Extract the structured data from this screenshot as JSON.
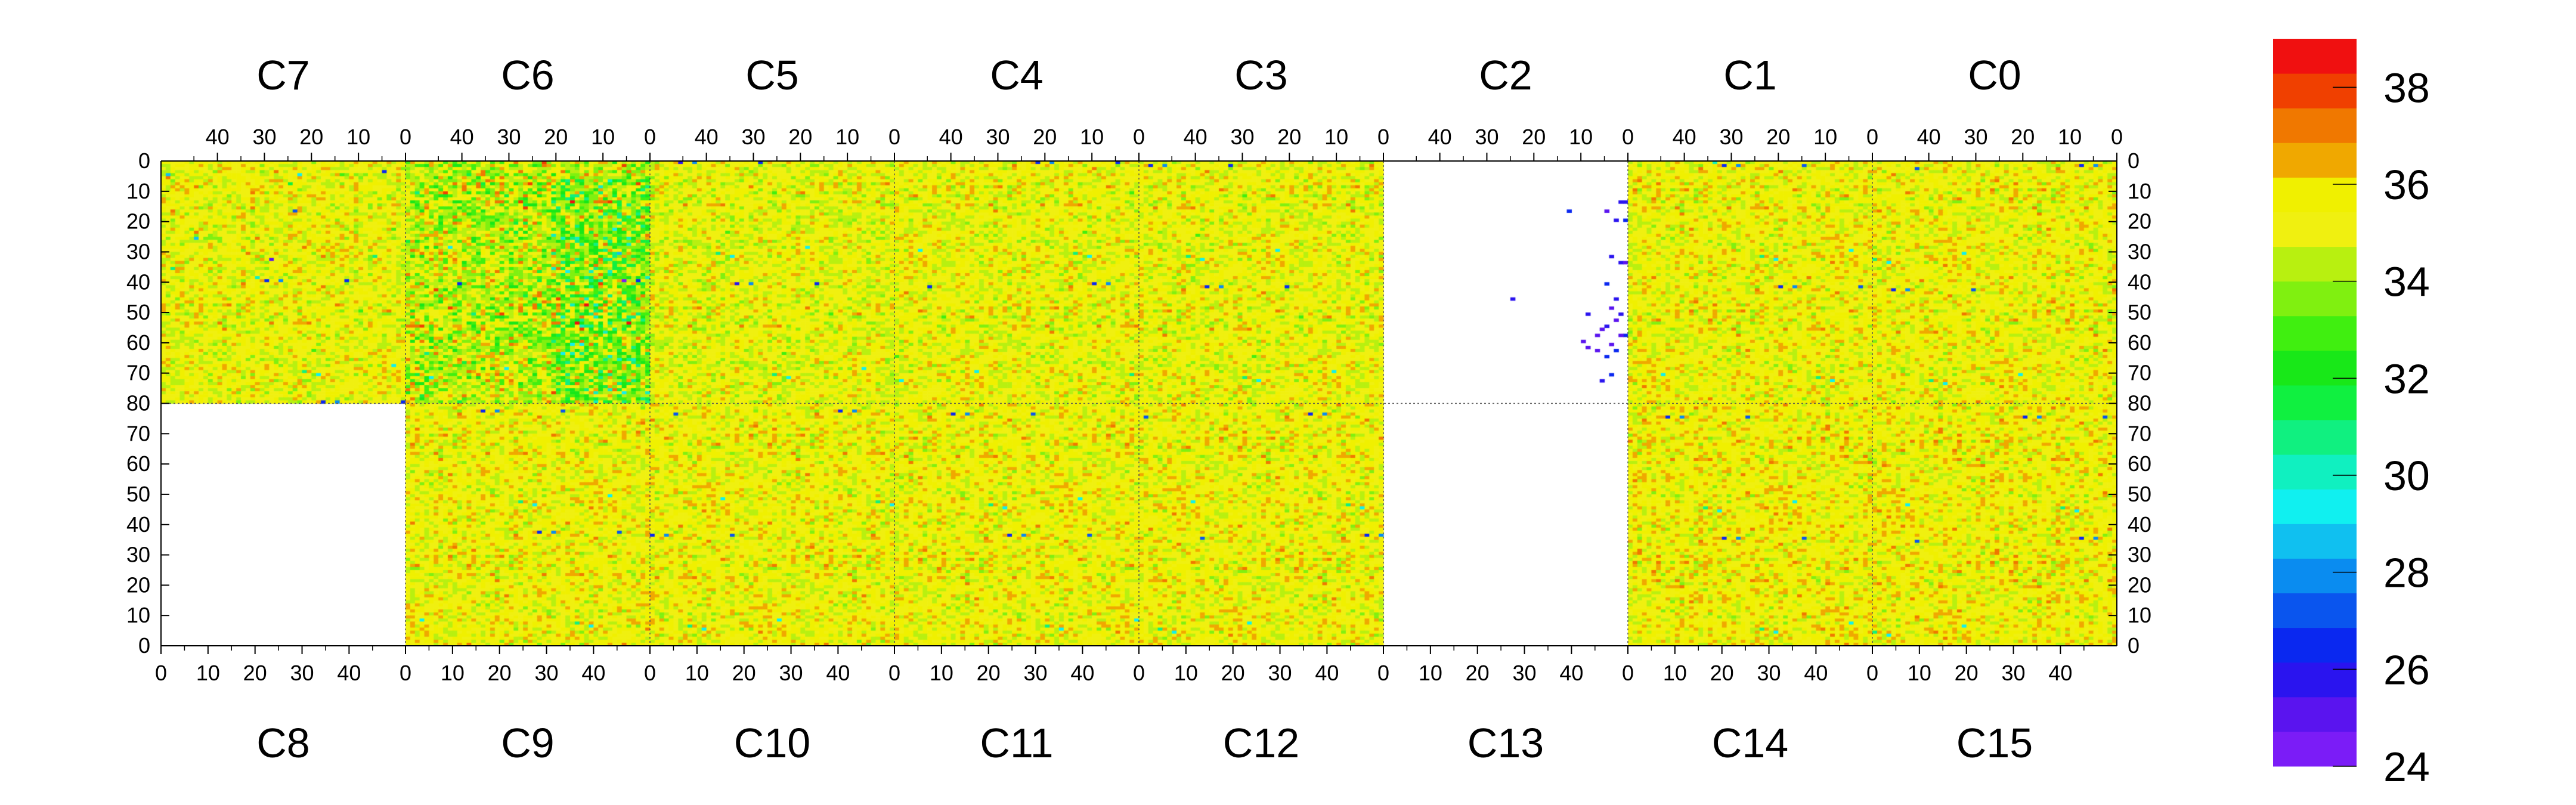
{
  "chart_data": {
    "type": "heatmap",
    "title": "",
    "grid": "dotted lines at module boundaries",
    "top_row_chips": [
      "C7",
      "C6",
      "C5",
      "C4",
      "C3",
      "C2",
      "C1",
      "C0"
    ],
    "bottom_row_chips": [
      "C8",
      "C9",
      "C10",
      "C11",
      "C12",
      "C13",
      "C14",
      "C15"
    ],
    "top_x_ticks": [
      "40",
      "30",
      "20",
      "10",
      "0"
    ],
    "bottom_x_ticks": [
      "0",
      "10",
      "20",
      "30",
      "40"
    ],
    "top_y_ticks": [
      "0",
      "10",
      "20",
      "30",
      "40",
      "50",
      "60",
      "70",
      "80"
    ],
    "bottom_y_ticks": [
      "70",
      "60",
      "50",
      "40",
      "30",
      "20",
      "10",
      "0"
    ],
    "columns_per_chip": 52,
    "rows_per_chip": 80,
    "color_scale": {
      "min": 24,
      "max": 39,
      "tick_labels": [
        "24",
        "26",
        "28",
        "30",
        "32",
        "34",
        "36",
        "38"
      ],
      "colors": [
        "#7b1cf7",
        "#5a14ef",
        "#2a14ef",
        "#0a28f0",
        "#0a55ee",
        "#0a8cf0",
        "#10c0f0",
        "#10f0f0",
        "#10f0c0",
        "#10f080",
        "#10f040",
        "#18e818",
        "#40ef10",
        "#80f010",
        "#b8f010",
        "#f0f010",
        "#f0f000",
        "#f0a800",
        "#f07800",
        "#f04000",
        "#f01010"
      ]
    },
    "chips": [
      {
        "name": "C7",
        "state": "active",
        "mean": 35.2,
        "spread": 1.0
      },
      {
        "name": "C6",
        "state": "active",
        "mean": 34.6,
        "spread": 1.8,
        "low_band_columns": [
          0,
          20
        ]
      },
      {
        "name": "C5",
        "state": "active",
        "mean": 35.1,
        "spread": 1.0
      },
      {
        "name": "C4",
        "state": "active",
        "mean": 35.2,
        "spread": 1.0
      },
      {
        "name": "C3",
        "state": "active",
        "mean": 35.2,
        "spread": 1.0
      },
      {
        "name": "C2",
        "state": "masked",
        "note": "blank except scattered low pixels (~24-26) near columns 0-10, rows 10-75"
      },
      {
        "name": "C1",
        "state": "active",
        "mean": 35.3,
        "spread": 1.0
      },
      {
        "name": "C0",
        "state": "active",
        "mean": 35.3,
        "spread": 1.0
      },
      {
        "name": "C8",
        "state": "masked"
      },
      {
        "name": "C9",
        "state": "active",
        "mean": 35.3,
        "spread": 1.0
      },
      {
        "name": "C10",
        "state": "active",
        "mean": 35.3,
        "spread": 1.0
      },
      {
        "name": "C11",
        "state": "active",
        "mean": 35.3,
        "spread": 1.0
      },
      {
        "name": "C12",
        "state": "active",
        "mean": 35.3,
        "spread": 1.0
      },
      {
        "name": "C13",
        "state": "masked"
      },
      {
        "name": "C14",
        "state": "active",
        "mean": 35.4,
        "spread": 1.0
      },
      {
        "name": "C15",
        "state": "active",
        "mean": 35.4,
        "spread": 1.0
      }
    ]
  }
}
